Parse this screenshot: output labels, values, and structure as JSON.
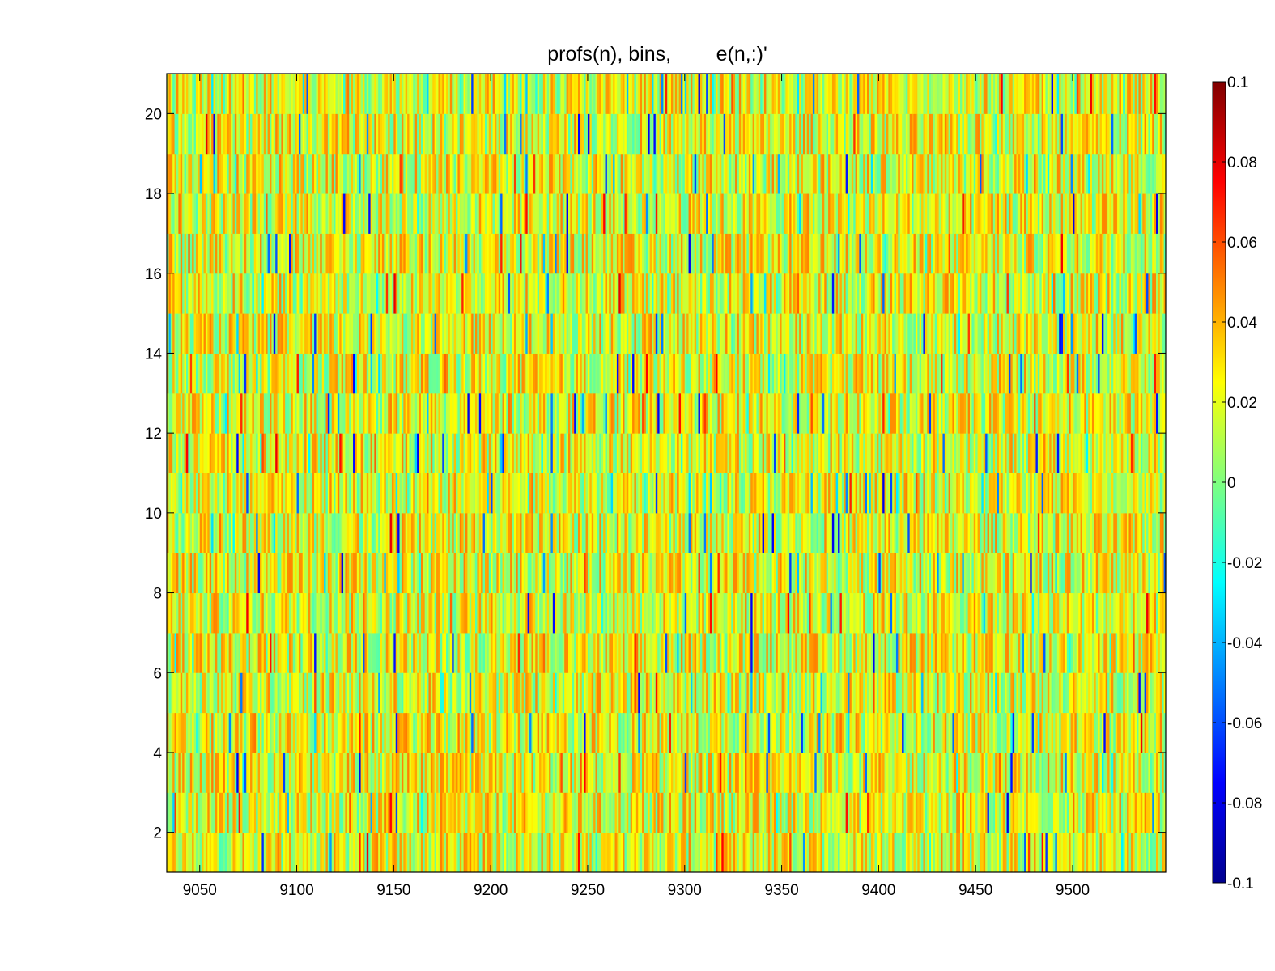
{
  "chart_data": {
    "type": "heatmap",
    "title": "profs(n), bins,        e(n,:)'",
    "xlabel": "",
    "ylabel": "",
    "xlim": [
      9033,
      9548
    ],
    "ylim": [
      1,
      21
    ],
    "x_ticks": [
      9050,
      9100,
      9150,
      9200,
      9250,
      9300,
      9350,
      9400,
      9450,
      9500
    ],
    "y_ticks": [
      2,
      4,
      6,
      8,
      10,
      12,
      14,
      16,
      18,
      20
    ],
    "rows": 20,
    "value_range": [
      -0.1,
      0.1
    ],
    "colormap": "jet",
    "colorbar": {
      "position": "right",
      "ticks": [
        "-0.1",
        "-0.08",
        "-0.06",
        "-0.04",
        "-0.02",
        "0",
        "0.02",
        "0.04",
        "0.06",
        "0.08",
        "0.1"
      ]
    },
    "colors": {
      "dark_blue": "#00008f",
      "blue": "#0000ff",
      "cyan": "#00ffff",
      "green": "#7fff7f",
      "yellow": "#ffff00",
      "red": "#ff0000",
      "dark_red": "#800000"
    }
  }
}
